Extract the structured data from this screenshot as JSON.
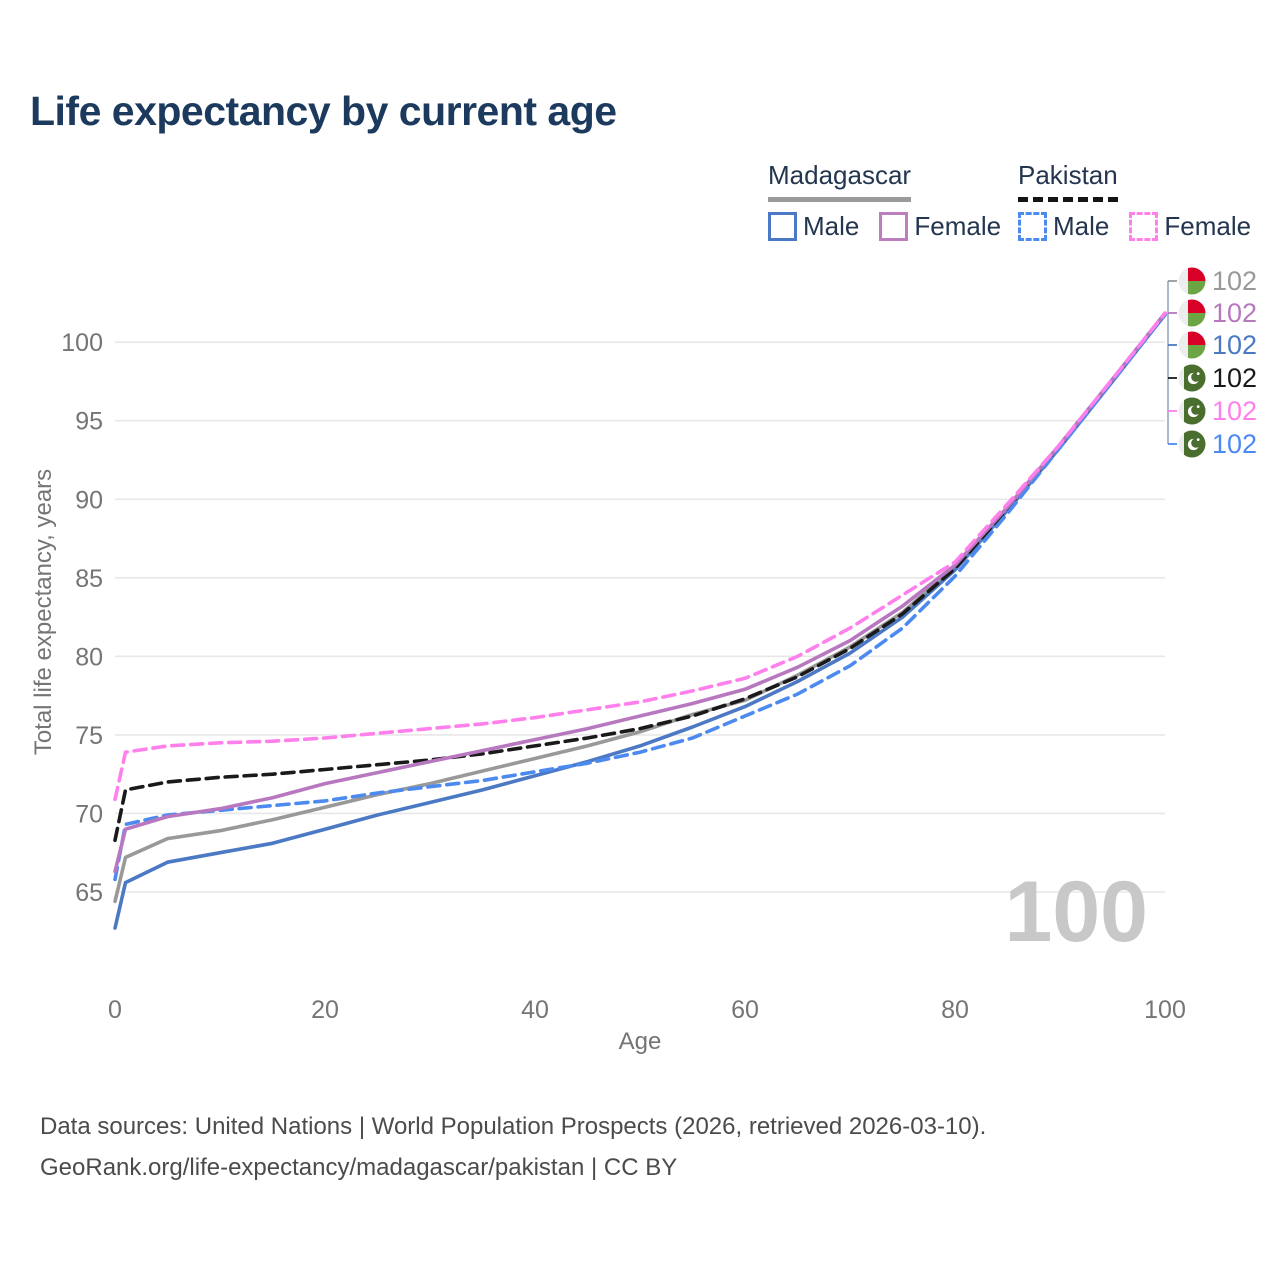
{
  "title": "Life expectancy by current age",
  "legend": {
    "groups": [
      {
        "name": "Madagascar",
        "line_style": "solid",
        "underline_color": "#9a9a9a",
        "items": [
          {
            "label": "Male",
            "color": "#4c79c4",
            "dashed": false
          },
          {
            "label": "Female",
            "color": "#bd7ebe",
            "dashed": false
          }
        ]
      },
      {
        "name": "Pakistan",
        "line_style": "dashed",
        "underline_color": "#141414",
        "items": [
          {
            "label": "Male",
            "color": "#4d8af0",
            "dashed": true
          },
          {
            "label": "Female",
            "color": "#ff80ec",
            "dashed": true
          }
        ]
      }
    ]
  },
  "chart_data": {
    "type": "line",
    "title": "Life expectancy by current age",
    "xlabel": "Age",
    "ylabel": "Total life expectancy, years",
    "xlim": [
      0,
      100
    ],
    "ylim": [
      62,
      103
    ],
    "x_ticks": [
      0,
      20,
      40,
      60,
      80,
      100
    ],
    "y_ticks": [
      65,
      70,
      75,
      80,
      85,
      90,
      95,
      100
    ],
    "grid": "horizontal",
    "legend_position": "top-right",
    "watermark": "100",
    "x": [
      0,
      1,
      5,
      10,
      15,
      20,
      25,
      30,
      35,
      40,
      45,
      50,
      55,
      60,
      65,
      70,
      75,
      80,
      85,
      90,
      95,
      100
    ],
    "series": [
      {
        "name": "Madagascar Both sexes",
        "country": "Madagascar",
        "sex": "Both",
        "flag": "madagascar",
        "color": "#999999",
        "dashed": false,
        "end_label": "102",
        "values": [
          64.4,
          67.2,
          68.4,
          68.9,
          69.6,
          70.4,
          71.2,
          71.9,
          72.7,
          73.5,
          74.3,
          75.2,
          76.3,
          77.2,
          78.8,
          80.6,
          82.8,
          85.7,
          89.4,
          93.4,
          97.6,
          101.8
        ]
      },
      {
        "name": "Madagascar Female",
        "country": "Madagascar",
        "sex": "Female",
        "flag": "madagascar",
        "color": "#b878c0",
        "dashed": false,
        "end_label": "102",
        "values": [
          66.3,
          69.0,
          69.8,
          70.3,
          71.0,
          71.9,
          72.6,
          73.3,
          74.0,
          74.7,
          75.4,
          76.2,
          77.0,
          77.9,
          79.3,
          81.0,
          83.2,
          85.8,
          89.5,
          93.5,
          97.65,
          101.85
        ]
      },
      {
        "name": "Madagascar Male",
        "country": "Madagascar",
        "sex": "Male",
        "flag": "madagascar",
        "color": "#4c79c4",
        "dashed": false,
        "end_label": "102",
        "values": [
          62.7,
          65.6,
          66.9,
          67.5,
          68.1,
          69.0,
          69.9,
          70.7,
          71.5,
          72.4,
          73.3,
          74.3,
          75.5,
          76.8,
          78.4,
          80.2,
          82.5,
          85.5,
          89.3,
          93.3,
          97.5,
          101.75
        ]
      },
      {
        "name": "Pakistan Both sexes",
        "country": "Pakistan",
        "sex": "Both",
        "flag": "pakistan",
        "color": "#1a1a1a",
        "dashed": true,
        "end_label": "102",
        "values": [
          68.3,
          71.5,
          72.0,
          72.3,
          72.5,
          72.8,
          73.1,
          73.4,
          73.8,
          74.3,
          74.8,
          75.4,
          76.2,
          77.3,
          78.7,
          80.5,
          82.7,
          85.6,
          89.4,
          93.4,
          97.6,
          101.8
        ]
      },
      {
        "name": "Pakistan Female",
        "country": "Pakistan",
        "sex": "Female",
        "flag": "pakistan",
        "color": "#ff80ec",
        "dashed": true,
        "end_label": "102",
        "values": [
          70.9,
          73.9,
          74.3,
          74.5,
          74.6,
          74.8,
          75.1,
          75.4,
          75.7,
          76.1,
          76.6,
          77.1,
          77.8,
          78.6,
          80.0,
          81.8,
          83.9,
          86.0,
          89.7,
          93.5,
          97.65,
          101.85
        ]
      },
      {
        "name": "Pakistan Male",
        "country": "Pakistan",
        "sex": "Male",
        "flag": "pakistan",
        "color": "#4d8af0",
        "dashed": true,
        "end_label": "102",
        "values": [
          65.8,
          69.3,
          69.9,
          70.2,
          70.5,
          70.8,
          71.3,
          71.7,
          72.1,
          72.65,
          73.2,
          73.9,
          74.8,
          76.2,
          77.6,
          79.4,
          81.8,
          85.1,
          89.1,
          93.3,
          97.5,
          101.75
        ]
      }
    ],
    "flag_colors": {
      "madagascar": {
        "white": "#ededed",
        "red": "#d80027",
        "green": "#6da544"
      },
      "pakistan": {
        "white": "#ededed",
        "green": "#496e2d"
      }
    }
  },
  "footer": {
    "line1": "Data sources: United Nations | World Population Prospects (2026, retrieved 2026-03-10).",
    "line2": "GeoRank.org/life-expectancy/madagascar/pakistan | CC BY"
  }
}
